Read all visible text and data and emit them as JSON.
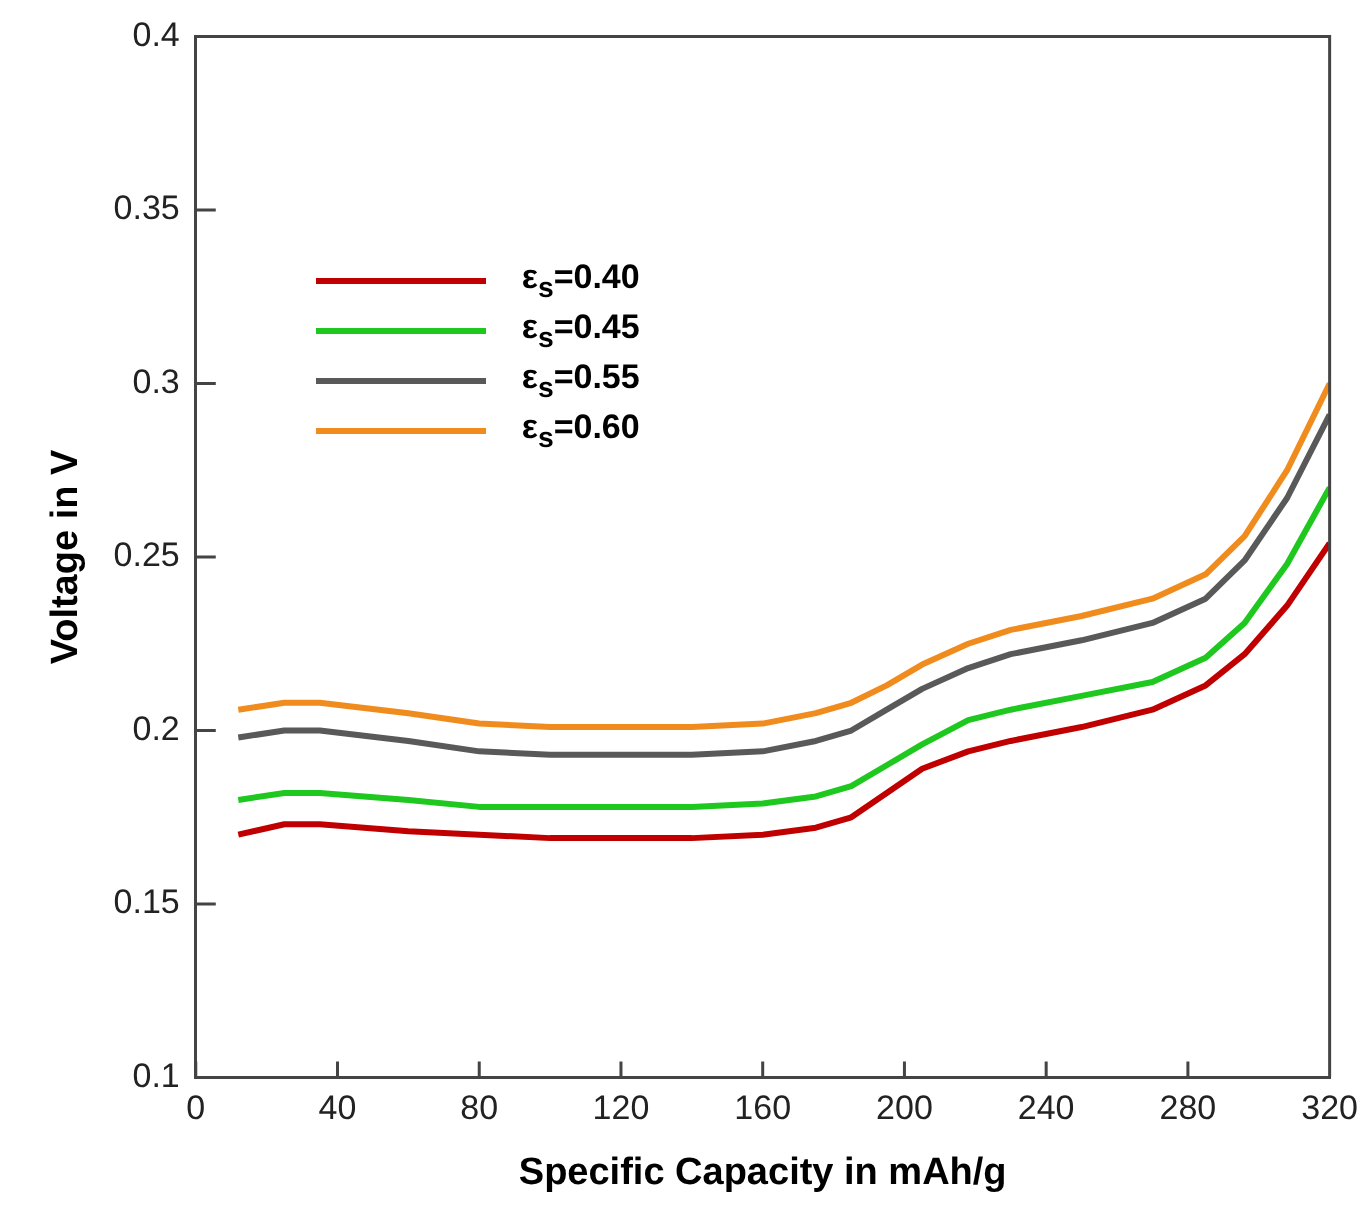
{
  "chart_data": {
    "type": "line",
    "xlabel": "Specific Capacity in mAh/g",
    "ylabel": "Voltage in V",
    "x": [
      12,
      25,
      35,
      60,
      80,
      100,
      120,
      140,
      160,
      175,
      185,
      195,
      205,
      218,
      230,
      250,
      270,
      285,
      296,
      308,
      320
    ],
    "xlim": [
      0,
      320
    ],
    "xticks": [
      0,
      40,
      80,
      120,
      160,
      200,
      240,
      280,
      320
    ],
    "ylim": [
      0.1,
      0.4
    ],
    "yticks": [
      0.1,
      0.15,
      0.2,
      0.25,
      0.3,
      0.35,
      0.4
    ],
    "grid": false,
    "legend": "top left",
    "marker": "none",
    "line_style": "solid",
    "series": [
      {
        "name": "ε$_{s}$=0.40",
        "color": "#c00000",
        "values": [
          0.17,
          0.173,
          0.173,
          0.171,
          0.17,
          0.169,
          0.169,
          0.169,
          0.17,
          0.172,
          0.175,
          0.182,
          0.189,
          0.194,
          0.197,
          0.201,
          0.206,
          0.213,
          0.222,
          0.236,
          0.254
        ]
      },
      {
        "name": "ε$_{s}$=0.45",
        "color": "#1ec81e",
        "values": [
          0.18,
          0.182,
          0.182,
          0.18,
          0.178,
          0.178,
          0.178,
          0.178,
          0.179,
          0.181,
          0.184,
          0.19,
          0.196,
          0.203,
          0.206,
          0.21,
          0.214,
          0.221,
          0.231,
          0.248,
          0.27
        ]
      },
      {
        "name": "ε$_{s}$=0.55",
        "color": "#595959",
        "values": [
          0.198,
          0.2,
          0.2,
          0.197,
          0.194,
          0.193,
          0.193,
          0.193,
          0.194,
          0.197,
          0.2,
          0.206,
          0.212,
          0.218,
          0.222,
          0.226,
          0.231,
          0.238,
          0.249,
          0.267,
          0.291
        ]
      },
      {
        "name": "ε$_{s}$=0.60",
        "color": "#f08c1e",
        "values": [
          0.206,
          0.208,
          0.208,
          0.205,
          0.202,
          0.201,
          0.201,
          0.201,
          0.202,
          0.205,
          0.208,
          0.213,
          0.219,
          0.225,
          0.229,
          0.233,
          0.238,
          0.245,
          0.256,
          0.275,
          0.3
        ]
      }
    ]
  }
}
